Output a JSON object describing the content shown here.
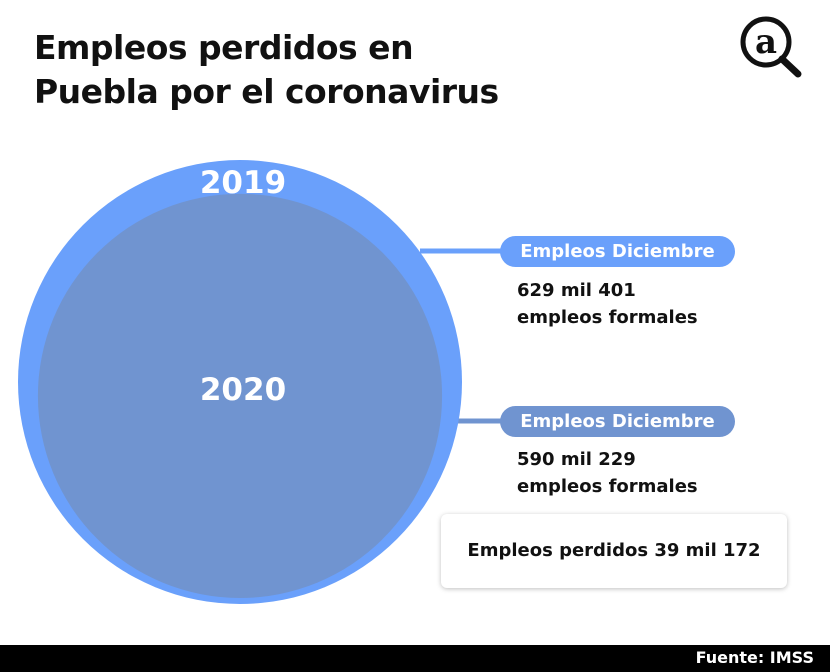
{
  "title_line1": "Empleos perdidos en",
  "title_line2": "Puebla por el coronavirus",
  "logo_text": "a",
  "colors": {
    "2019": "#6aa0fb",
    "2020": "#7094d0"
  },
  "chart_data": {
    "type": "bubble",
    "categories": [
      "2019",
      "2020"
    ],
    "values": [
      629401,
      590229
    ],
    "labels": [
      {
        "pill": "Empleos Diciembre",
        "line1": "629 mil 401",
        "line2": "empleos formales"
      },
      {
        "pill": "Empleos Diciembre",
        "line1": "590 mil 229",
        "line2": "empleos formales"
      }
    ],
    "annotation": "Empleos perdidos 39 mil 172"
  },
  "footer": {
    "source": "Fuente: IMSS"
  }
}
